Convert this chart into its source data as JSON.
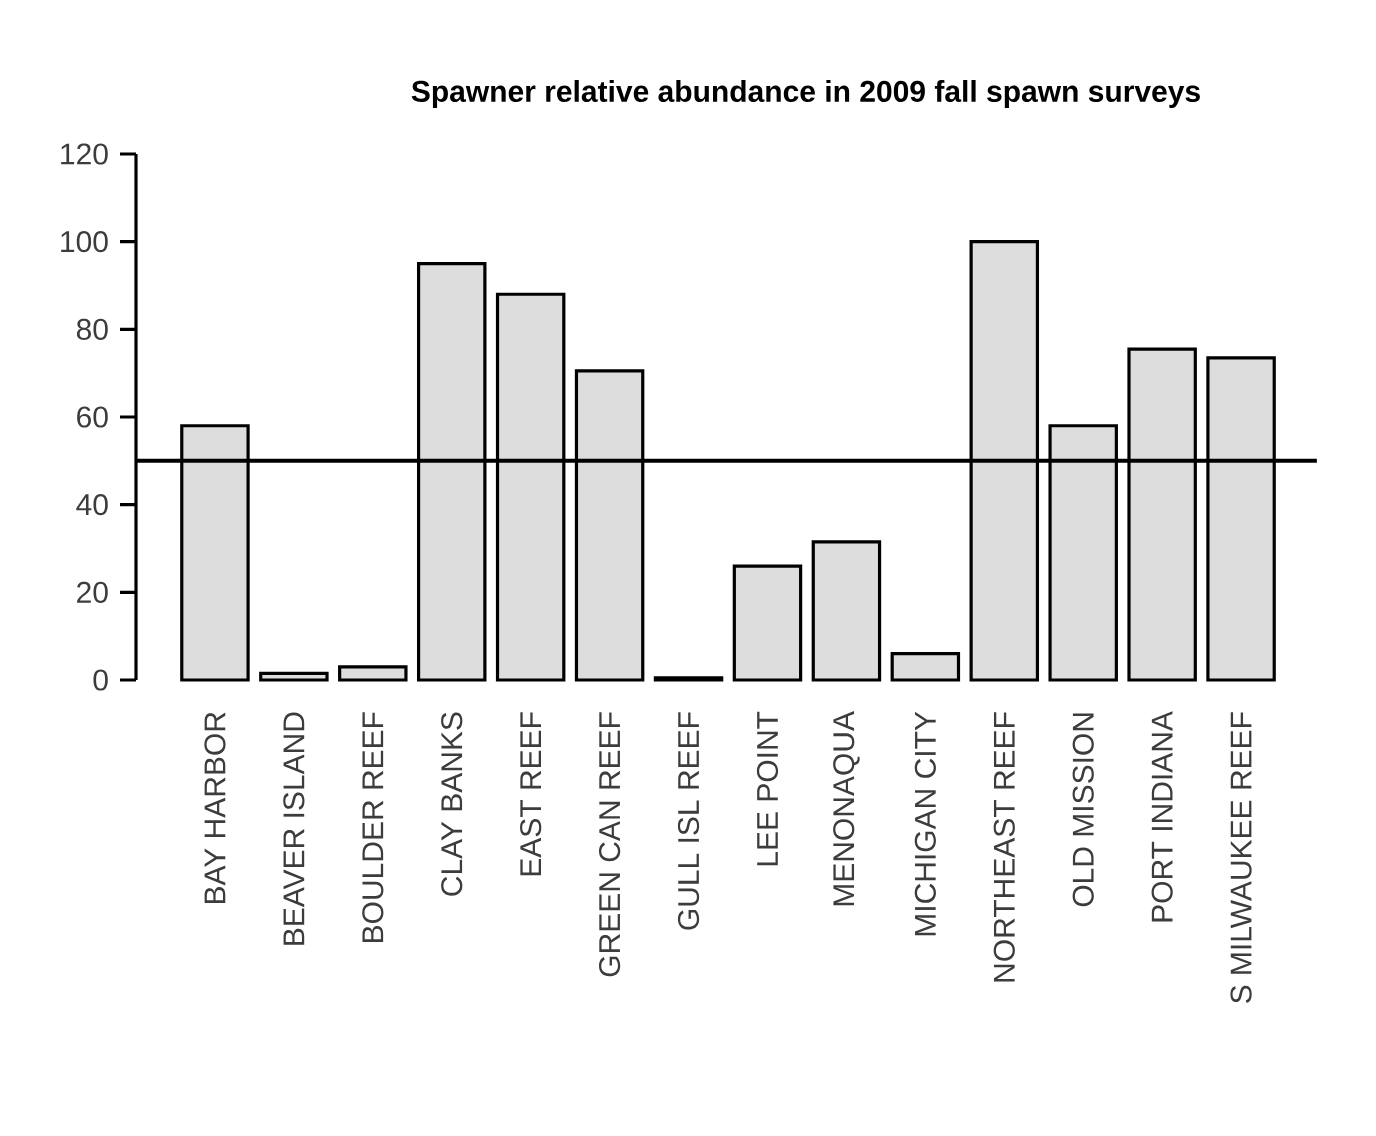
{
  "chart_data": {
    "type": "bar",
    "title": "Spawner relative abundance in 2009 fall spawn surveys",
    "categories": [
      "BAY HARBOR",
      "BEAVER ISLAND",
      "BOULDER REEF",
      "CLAY BANKS",
      "EAST REEF",
      "GREEN CAN REEF",
      "GULL ISL REEF",
      "LEE POINT",
      "MENONAQUA",
      "MICHIGAN CITY",
      "NORTHEAST REEF",
      "OLD MISSION",
      "PORT INDIANA",
      "S MILWAUKEE REEF"
    ],
    "values": [
      58,
      1.5,
      3,
      95,
      88,
      70.5,
      0.5,
      26,
      31.5,
      6,
      100,
      58,
      75.5,
      73.5
    ],
    "color": "#dddddd",
    "ylim": [
      0,
      120
    ],
    "yticks": [
      0,
      20,
      40,
      60,
      80,
      100,
      120
    ],
    "ref_lines": [
      {
        "axis": "y",
        "value": 50,
        "color": "#000000"
      }
    ]
  }
}
